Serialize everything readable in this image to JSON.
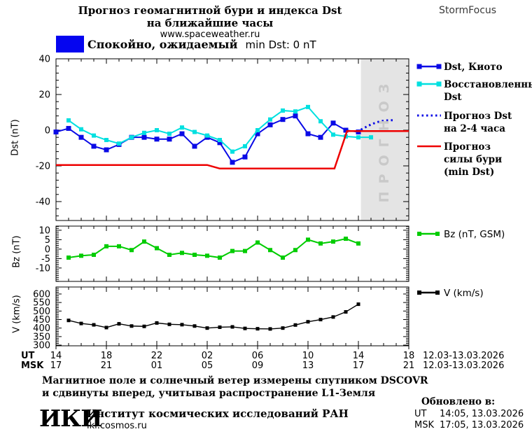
{
  "header": {
    "title_line1": "Прогноз геомагнитной бури и индекса Dst",
    "title_line2": "на ближайшие часы",
    "website": "www.spaceweather.ru",
    "brand": "StormFocus"
  },
  "status_banner": {
    "swatch_color": "#0505f0",
    "text_ru": "Спокойно, ожидаемый",
    "text_latin": "min Dst: 0 nT"
  },
  "legend": {
    "entries": [
      {
        "swatch": "markers",
        "color": "#0a0ae6",
        "lines": [
          "Dst, Киото"
        ]
      },
      {
        "swatch": "markers",
        "color": "#00e0e0",
        "lines": [
          "Восстановленный",
          "Dst"
        ]
      },
      {
        "swatch": "dotted",
        "color": "#0a0ae6",
        "lines": [
          "Прогноз Dst",
          "на 2-4 часа"
        ]
      },
      {
        "swatch": "line",
        "color": "#ee0000",
        "lines": [
          "Прогноз",
          "силы бури",
          "(min Dst)"
        ]
      }
    ],
    "bz_entry": {
      "swatch": "markers",
      "color": "#00cc00",
      "label": "Bz (nT, GSM)"
    },
    "v_entry": {
      "swatch": "markers",
      "color": "#000000",
      "label": "V (km/s)"
    }
  },
  "axes": {
    "dst_ylabel": "Dst (nT)",
    "bz_ylabel": "Bz (nT)",
    "v_ylabel": "V (km/s)",
    "ut_row_label": "UT",
    "msk_row_label": "MSK",
    "ut_date_range": "12.03-13.03.2026",
    "msk_date_range": "12.03-13.03.2026"
  },
  "forecast_band_label": "ПРОГНОЗ",
  "footer": {
    "caption_line1": "Магнитное поле и солнечный ветер измерены спутником DSCOVR",
    "caption_line2": "и сдвинуты вперед, учитывая распространение L1-Земля",
    "logo": "ИКИ",
    "institute": "Институт космических исследований РАН",
    "institute_site": "iki.cosmos.ru",
    "updated_title": "Обновлено в:",
    "updated_rows": [
      {
        "zone": "UT",
        "time": "14:05, 13.03.2026"
      },
      {
        "zone": "MSK",
        "time": "17:05, 13.03.2026"
      }
    ]
  },
  "chart_data": {
    "type": "line",
    "title": "Прогноз геомагнитной бури и индекса Dst на ближайшие часы",
    "x": {
      "unit": "hours UT from 14:00 12.03.2026",
      "span_hours": 28,
      "major_tick_hours": [
        0,
        4,
        8,
        12,
        16,
        20,
        24,
        28
      ],
      "ut_labels": [
        "14",
        "18",
        "22",
        "02",
        "06",
        "10",
        "14",
        "18"
      ],
      "msk_labels": [
        "17",
        "21",
        "01",
        "05",
        "09",
        "13",
        "17",
        "21"
      ]
    },
    "panels": [
      {
        "id": "dst",
        "ylabel": "Dst (nT)",
        "ylim": [
          -50.6,
          40
        ],
        "yticks": [
          40,
          20,
          0,
          -20,
          -40
        ],
        "yminor": 4,
        "band": {
          "from_hour": 24.2,
          "color": "#e4e4e4",
          "label": "ПРОГНОЗ"
        },
        "series": [
          {
            "name": "Dst, Киото",
            "color": "#0a0ae6",
            "marker": 7,
            "line_width": 2,
            "start_hour": 0,
            "values": [
              -1,
              1,
              -4,
              -9,
              -11,
              -8,
              -4,
              -4,
              -5,
              -5,
              -2,
              -9,
              -4,
              -7,
              -18,
              -15,
              -2,
              3,
              6,
              8,
              -2,
              -4,
              4,
              0,
              -1
            ]
          },
          {
            "name": "Восстановленный Dst",
            "color": "#00e0e0",
            "marker": 6,
            "line_width": 2,
            "start_hour": 1,
            "values": [
              5.5,
              0.5,
              -3,
              -5.5,
              -7.5,
              -4,
              -1.5,
              0,
              -2,
              1.5,
              -1,
              -3,
              -5.5,
              -12,
              -9,
              0,
              6,
              11,
              10.5,
              13,
              5,
              -2.5,
              -3.5,
              -4,
              -4
            ]
          },
          {
            "name": "Прогноз Dst на 2-4 часа",
            "color": "#0a0ae6",
            "dotted": true,
            "line_width": 3,
            "x_hours": [
              24.2,
              24.6,
              25.0,
              25.4,
              25.8,
              26.2,
              26.6,
              26.9
            ],
            "values": [
              0.3,
              1.8,
              3.2,
              4.3,
              5.1,
              5.5,
              5.6,
              5.6
            ]
          },
          {
            "name": "Прогноз силы бури (min Dst)",
            "color": "#ee0000",
            "line_width": 2.5,
            "x_hours": [
              0,
              12,
              13,
              22.1,
              23.1,
              28
            ],
            "values": [
              -19.5,
              -19.5,
              -21.5,
              -21.5,
              -0.5,
              -0.5
            ]
          }
        ]
      },
      {
        "id": "bz",
        "ylabel": "Bz (nT)",
        "ylim": [
          -17.1,
          12.2
        ],
        "yticks": [
          10,
          5,
          0,
          -5,
          -10
        ],
        "yminor": 1,
        "series": [
          {
            "name": "Bz (nT, GSM)",
            "color": "#00cc00",
            "marker": 6,
            "line_width": 2,
            "start_hour": 1,
            "values": [
              -4.5,
              -3.5,
              -3,
              1.5,
              1.5,
              -0.5,
              4,
              0.5,
              -3,
              -2,
              -3,
              -3.5,
              -4.5,
              -1,
              -1,
              3.5,
              -0.5,
              -4.5,
              -0.5,
              5,
              3,
              4,
              5.5,
              3
            ]
          }
        ]
      },
      {
        "id": "v",
        "ylabel": "V (km/s)",
        "ylim": [
          296,
          641
        ],
        "yticks": [
          600,
          550,
          500,
          450,
          400,
          350,
          300
        ],
        "yminor": 10,
        "series": [
          {
            "name": "V (km/s)",
            "color": "#000000",
            "marker": 5,
            "line_width": 1.4,
            "start_hour": 1,
            "values": [
              445,
              427,
              419,
              403,
              425,
              412,
              410,
              430,
              422,
              420,
              412,
              400,
              405,
              407,
              398,
              396,
              395,
              400,
              418,
              437,
              450,
              465,
              495,
              540
            ]
          }
        ]
      }
    ]
  }
}
